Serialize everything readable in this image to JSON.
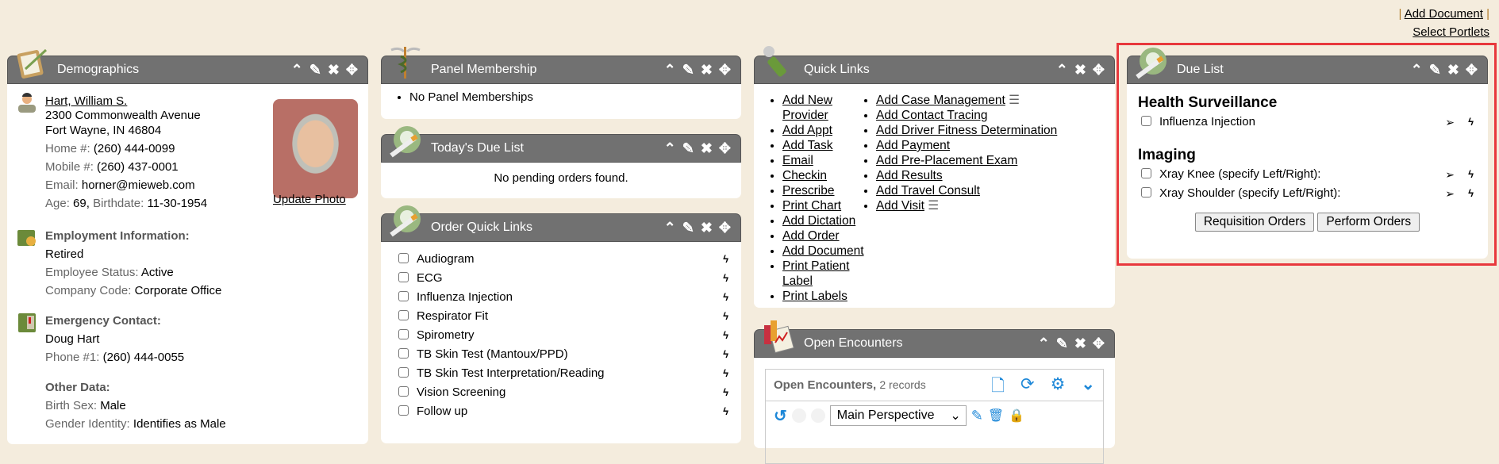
{
  "top_links": {
    "add_document": "Add Document",
    "select_portlets": "Select Portlets"
  },
  "demographics": {
    "title": "Demographics",
    "name": "Hart, William S.",
    "address1": "2300 Commonwealth Avenue",
    "address2": "Fort Wayne, IN 46804",
    "home_label": "Home #:",
    "home": "(260) 444-0099",
    "mobile_label": "Mobile #:",
    "mobile": "(260) 437-0001",
    "email_label": "Email:",
    "email": "horner@mieweb.com",
    "age_label": "Age:",
    "age": "69,",
    "birth_label": "Birthdate:",
    "birthdate": "11-30-1954",
    "update_photo": "Update Photo",
    "employment": {
      "heading": "Employment Information:",
      "status_text": "Retired",
      "emp_status_label": "Employee Status:",
      "emp_status": "Active",
      "company_label": "Company Code:",
      "company": "Corporate Office"
    },
    "emergency": {
      "heading": "Emergency Contact:",
      "name": "Doug Hart",
      "phone_label": "Phone #1:",
      "phone": "(260) 444-0055"
    },
    "other": {
      "heading": "Other Data:",
      "sex_label": "Birth Sex:",
      "sex": "Male",
      "gender_label": "Gender Identity:",
      "gender": "Identifies as Male"
    }
  },
  "panel_membership": {
    "title": "Panel Membership",
    "items": [
      "No Panel Memberships"
    ]
  },
  "todays_due": {
    "title": "Today's Due List",
    "message": "No pending orders found."
  },
  "order_quick_links": {
    "title": "Order Quick Links",
    "items": [
      "Audiogram",
      "ECG",
      "Influenza Injection",
      "Respirator Fit",
      "Spirometry",
      "TB Skin Test (Mantoux/PPD)",
      "TB Skin Test Interpretation/Reading",
      "Vision Screening",
      "Follow up"
    ]
  },
  "quick_links": {
    "title": "Quick Links",
    "col1": [
      "Add New Provider",
      "Add Appt",
      "Add Task",
      "Email",
      "Checkin",
      "Prescribe",
      "Print Chart",
      "Add Dictation",
      "Add Order",
      "Add Document",
      "Print Patient Label",
      "Print Labels"
    ],
    "col2": [
      "Add Case Management",
      "Add Contact Tracing",
      "Add Driver Fitness Determination",
      "Add Payment",
      "Add Pre-Placement Exam",
      "Add Results",
      "Add Travel Consult",
      "Add Visit"
    ]
  },
  "open_encounters": {
    "title": "Open Encounters",
    "grid_title": "Open Encounters,",
    "records": "2 records",
    "perspective": "Main Perspective"
  },
  "due_list": {
    "title": "Due List",
    "sections": [
      {
        "heading": "Health Surveillance",
        "items": [
          "Influenza Injection"
        ]
      },
      {
        "heading": "Imaging",
        "items": [
          "Xray Knee (specify Left/Right):",
          "Xray Shoulder (specify Left/Right):"
        ]
      }
    ],
    "requisition": "Requisition Orders",
    "perform": "Perform Orders"
  },
  "colors": {
    "header": "#717171",
    "background": "#f4ecdd",
    "highlight": "#e8383d",
    "accent": "#1e88d8"
  }
}
